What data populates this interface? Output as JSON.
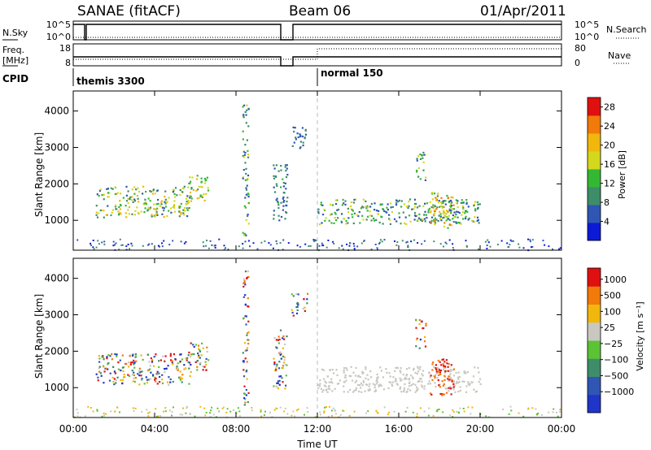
{
  "header": {
    "title": "SANAE (fitACF)",
    "beam": "Beam 06",
    "date": "01/Apr/2011"
  },
  "status_panel": {
    "left_label_1": "N.Sky",
    "left_label_2": "Freq.",
    "left_label_3": "[MHz]",
    "left_label_4": "CPID",
    "right_label_1": "N.Search",
    "right_label_2": "Nave",
    "nsky_ticks": [
      "10^5",
      "10^0"
    ],
    "freq_ticks": [
      "18",
      "8"
    ],
    "nsearch_ticks": [
      "10^5",
      "10^0"
    ],
    "nave_ticks": [
      "80",
      "0"
    ],
    "cpid_1": "themis 3300",
    "cpid_2": "normal 150",
    "cpid_change_time": 12.0
  },
  "chart_data": [
    {
      "type": "heatmap",
      "name": "power",
      "ylabel": "Slant Range [km]",
      "xlabel": "Time UT",
      "xlim": [
        0,
        24
      ],
      "ylim": [
        180,
        4550
      ],
      "x_ticks": [
        "00:00",
        "04:00",
        "08:00",
        "12:00",
        "16:00",
        "20:00",
        "00:00"
      ],
      "y_ticks": [
        1000,
        2000,
        3000,
        4000
      ],
      "colorbar": {
        "label": "Power [dB]",
        "ticks": [
          4,
          8,
          12,
          16,
          20,
          24,
          28
        ],
        "range": [
          0,
          30
        ],
        "colors": [
          "#0c1ad6",
          "#2f56b4",
          "#3e8d6a",
          "#34b834",
          "#d4d81c",
          "#f1b70c",
          "#f27a0a",
          "#e01010"
        ]
      },
      "echo_regions": [
        {
          "t": [
            1.1,
            5.8
          ],
          "range": [
            1100,
            1950
          ],
          "level": [
            6,
            22
          ]
        },
        {
          "t": [
            5.6,
            6.6
          ],
          "range": [
            1500,
            2250
          ],
          "level": [
            10,
            22
          ]
        },
        {
          "t": [
            8.3,
            8.6
          ],
          "range": [
            500,
            4300
          ],
          "level": [
            4,
            18
          ]
        },
        {
          "t": [
            9.8,
            10.5
          ],
          "range": [
            1000,
            2600
          ],
          "level": [
            4,
            12
          ]
        },
        {
          "t": [
            10.7,
            11.5
          ],
          "range": [
            3000,
            3600
          ],
          "level": [
            4,
            10
          ]
        },
        {
          "t": [
            12.0,
            20.0
          ],
          "range": [
            900,
            1600
          ],
          "level": [
            4,
            18
          ]
        },
        {
          "t": [
            16.8,
            17.3
          ],
          "range": [
            2100,
            2900
          ],
          "level": [
            6,
            20
          ]
        },
        {
          "t": [
            17.5,
            18.7
          ],
          "range": [
            800,
            1800
          ],
          "level": [
            8,
            26
          ]
        }
      ]
    },
    {
      "type": "heatmap",
      "name": "velocity",
      "ylabel": "Slant Range [km]",
      "xlabel": "Time UT",
      "xlim": [
        0,
        24
      ],
      "ylim": [
        180,
        4550
      ],
      "x_ticks": [
        "00:00",
        "04:00",
        "08:00",
        "12:00",
        "16:00",
        "20:00",
        "00:00"
      ],
      "y_ticks": [
        1000,
        2000,
        3000,
        4000
      ],
      "colorbar": {
        "label": "Velocity [m s⁻¹]",
        "ticks": [
          "1000",
          "500",
          "100",
          "25",
          "−25",
          "−100",
          "−500",
          "−1000"
        ],
        "colors": [
          "#1f35c8",
          "#2f56b4",
          "#3e8d6a",
          "#5cc334",
          "#c8c8c0",
          "#f1b70c",
          "#f27a0a",
          "#e01010"
        ]
      },
      "echo_regions": [
        {
          "t": [
            1.1,
            5.8
          ],
          "range": [
            1100,
            1950
          ],
          "velocity": "mixed -1000..1000"
        },
        {
          "t": [
            12.0,
            20.0
          ],
          "range": [
            900,
            1600
          ],
          "velocity": "-25..25"
        },
        {
          "t": [
            17.5,
            18.7
          ],
          "range": [
            800,
            1800
          ],
          "velocity": "-1000..-100"
        }
      ]
    }
  ],
  "colors": {
    "frame": "#000000",
    "divider_dashed": "#bbbbbb"
  }
}
